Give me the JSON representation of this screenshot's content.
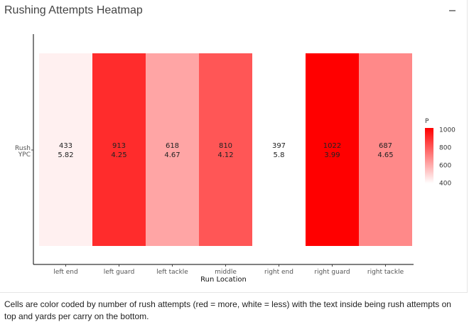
{
  "panel": {
    "title": "Rushing Attempts Heatmap",
    "collapse_icon": "minus-icon"
  },
  "caption": "Cells are color coded by number of rush attempts (red = more, white = less) with the text inside being rush attempts on top and yards per carry on the bottom.",
  "chart_data": {
    "type": "heatmap",
    "title": "",
    "xlabel": "Run Location",
    "ylabel": "",
    "y_categories": [
      "Rush",
      "YPC"
    ],
    "categories": [
      "left end",
      "left guard",
      "left tackle",
      "middle",
      "right end",
      "right guard",
      "right tackle"
    ],
    "attempts": [
      433,
      913,
      618,
      810,
      397,
      1022,
      687
    ],
    "ypc": [
      "5.82",
      "4.25",
      "4.67",
      "4.12",
      "5.8",
      "3.99",
      "4.65"
    ],
    "color_scale": {
      "title": "P",
      "min": 397,
      "max": 1022,
      "low_color": "#ffffff",
      "high_color": "#ff0000",
      "ticks": [
        400,
        600,
        800,
        1000
      ]
    },
    "legend_position": "right",
    "grid": false
  }
}
